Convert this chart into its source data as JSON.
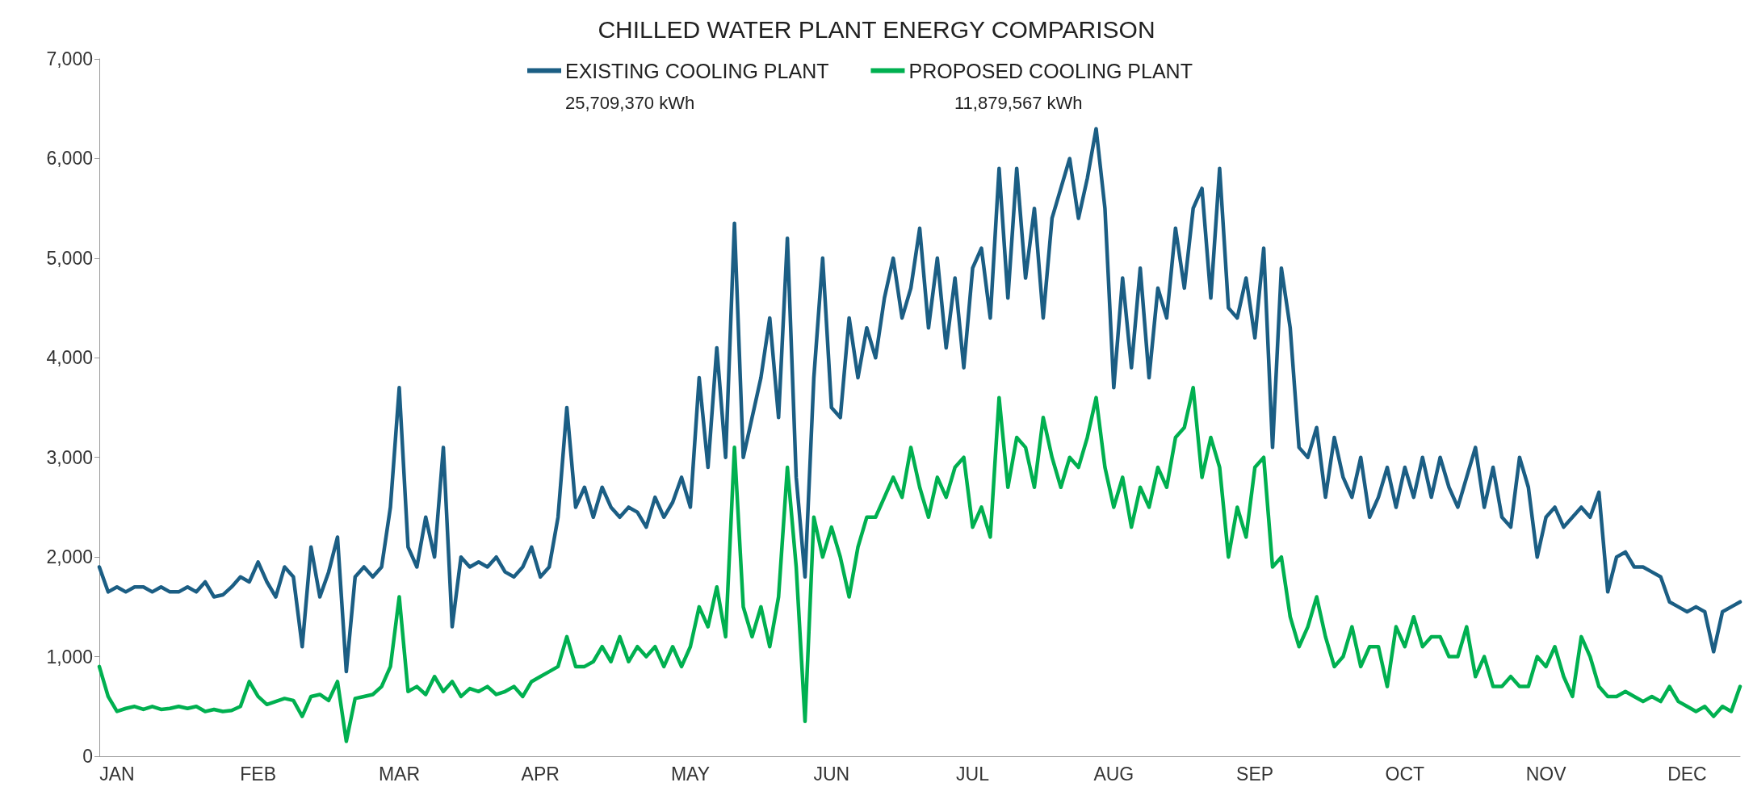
{
  "chart_data": {
    "type": "line",
    "title": "CHILLED WATER PLANT ENERGY COMPARISON",
    "categories": [
      null,
      null,
      "JAN",
      null,
      null,
      null,
      null,
      null,
      null,
      null,
      null,
      null,
      null,
      null,
      null,
      null,
      null,
      null,
      "FEB",
      null,
      null,
      null,
      null,
      null,
      null,
      null,
      null,
      null,
      null,
      null,
      null,
      null,
      null,
      null,
      "MAR",
      null,
      null,
      null,
      null,
      null,
      null,
      null,
      null,
      null,
      null,
      null,
      null,
      null,
      null,
      null,
      "APR",
      null,
      null,
      null,
      null,
      null,
      null,
      null,
      null,
      null,
      null,
      null,
      null,
      null,
      null,
      null,
      null,
      "MAY",
      null,
      null,
      null,
      null,
      null,
      null,
      null,
      null,
      null,
      null,
      null,
      null,
      null,
      null,
      null,
      "JUN",
      null,
      null,
      null,
      null,
      null,
      null,
      null,
      null,
      null,
      null,
      null,
      null,
      null,
      null,
      null,
      "JUL",
      null,
      null,
      null,
      null,
      null,
      null,
      null,
      null,
      null,
      null,
      null,
      null,
      null,
      null,
      null,
      "AUG",
      null,
      null,
      null,
      null,
      null,
      null,
      null,
      null,
      null,
      null,
      null,
      null,
      null,
      null,
      null,
      "SEP",
      null,
      null,
      null,
      null,
      null,
      null,
      null,
      null,
      null,
      null,
      null,
      null,
      null,
      null,
      null,
      null,
      "OCT",
      null,
      null,
      null,
      null,
      null,
      null,
      null,
      null,
      null,
      null,
      null,
      null,
      null,
      null,
      null,
      "NOV",
      null,
      null,
      null,
      null,
      null,
      null,
      null,
      null,
      null,
      null,
      null,
      null,
      null,
      null,
      null,
      "DEC",
      null,
      null,
      null,
      null,
      null,
      null
    ],
    "series": [
      {
        "name": "EXISTING COOLING PLANT",
        "color": "#1b5e84",
        "values": [
          1900,
          1650,
          1700,
          1650,
          1700,
          1700,
          1650,
          1700,
          1650,
          1650,
          1700,
          1650,
          1750,
          1600,
          1620,
          1700,
          1800,
          1750,
          1950,
          1750,
          1600,
          1900,
          1800,
          1100,
          2100,
          1600,
          1850,
          2200,
          850,
          1800,
          1900,
          1800,
          1900,
          2500,
          3700,
          2100,
          1900,
          2400,
          2000,
          3100,
          1300,
          2000,
          1900,
          1950,
          1900,
          2000,
          1850,
          1800,
          1900,
          2100,
          1800,
          1900,
          2400,
          3500,
          2500,
          2700,
          2400,
          2700,
          2500,
          2400,
          2500,
          2450,
          2300,
          2600,
          2400,
          2550,
          2800,
          2500,
          3800,
          2900,
          4100,
          3000,
          5350,
          3000,
          3400,
          3800,
          4400,
          3400,
          5200,
          2800,
          1800,
          3800,
          5000,
          3500,
          3400,
          4400,
          3800,
          4300,
          4000,
          4600,
          5000,
          4400,
          4700,
          5300,
          4300,
          5000,
          4100,
          4800,
          3900,
          4900,
          5100,
          4400,
          5900,
          4600,
          5900,
          4800,
          5500,
          4400,
          5400,
          5700,
          6000,
          5400,
          5800,
          6300,
          5500,
          3700,
          4800,
          3900,
          4900,
          3800,
          4700,
          4400,
          5300,
          4700,
          5500,
          5700,
          4600,
          5900,
          4500,
          4400,
          4800,
          4200,
          5100,
          3100,
          4900,
          4300,
          3100,
          3000,
          3300,
          2600,
          3200,
          2800,
          2600,
          3000,
          2400,
          2600,
          2900,
          2500,
          2900,
          2600,
          3000,
          2600,
          3000,
          2700,
          2500,
          2800,
          3100,
          2500,
          2900,
          2400,
          2300,
          3000,
          2700,
          2000,
          2400,
          2500,
          2300,
          2400,
          2500,
          2400,
          2650,
          1650,
          2000,
          2050,
          1900,
          1900,
          1850,
          1800,
          1550,
          1500,
          1450,
          1500,
          1450,
          1050,
          1450,
          1500,
          1550
        ]
      },
      {
        "name": "PROPOSED COOLING PLANT",
        "color": "#00b050",
        "values": [
          900,
          600,
          450,
          480,
          500,
          470,
          500,
          470,
          480,
          500,
          480,
          500,
          450,
          470,
          450,
          460,
          500,
          750,
          600,
          520,
          550,
          580,
          560,
          400,
          600,
          620,
          560,
          750,
          150,
          580,
          600,
          620,
          700,
          900,
          1600,
          650,
          700,
          620,
          800,
          650,
          750,
          600,
          680,
          650,
          700,
          620,
          650,
          700,
          600,
          750,
          800,
          850,
          900,
          1200,
          900,
          900,
          950,
          1100,
          950,
          1200,
          950,
          1100,
          1000,
          1100,
          900,
          1100,
          900,
          1100,
          1500,
          1300,
          1700,
          1200,
          3100,
          1500,
          1200,
          1500,
          1100,
          1600,
          2900,
          1900,
          350,
          2400,
          2000,
          2300,
          2000,
          1600,
          2100,
          2400,
          2400,
          2600,
          2800,
          2600,
          3100,
          2700,
          2400,
          2800,
          2600,
          2900,
          3000,
          2300,
          2500,
          2200,
          3600,
          2700,
          3200,
          3100,
          2700,
          3400,
          3000,
          2700,
          3000,
          2900,
          3200,
          3600,
          2900,
          2500,
          2800,
          2300,
          2700,
          2500,
          2900,
          2700,
          3200,
          3300,
          3700,
          2800,
          3200,
          2900,
          2000,
          2500,
          2200,
          2900,
          3000,
          1900,
          2000,
          1400,
          1100,
          1300,
          1600,
          1200,
          900,
          1000,
          1300,
          900,
          1100,
          1100,
          700,
          1300,
          1100,
          1400,
          1100,
          1200,
          1200,
          1000,
          1000,
          1300,
          800,
          1000,
          700,
          700,
          800,
          700,
          700,
          1000,
          900,
          1100,
          800,
          600,
          1200,
          1000,
          700,
          600,
          600,
          650,
          600,
          550,
          600,
          550,
          700,
          550,
          500,
          450,
          500,
          400,
          500,
          450,
          700
        ]
      }
    ],
    "annotations": [
      "25,709,370 kWh",
      "11,879,567 kWh"
    ],
    "ylim": [
      0,
      7000
    ],
    "yticks": [
      {
        "value": 0,
        "label": "0"
      },
      {
        "value": 1000,
        "label": "1,000"
      },
      {
        "value": 2000,
        "label": "2,000"
      },
      {
        "value": 3000,
        "label": "3,000"
      },
      {
        "value": 4000,
        "label": "4,000"
      },
      {
        "value": 5000,
        "label": "5,000"
      },
      {
        "value": 6000,
        "label": "6,000"
      },
      {
        "value": 7000,
        "label": "7,000"
      }
    ],
    "legend": "top",
    "grid": false,
    "marker": "none",
    "line_style": "solid"
  }
}
